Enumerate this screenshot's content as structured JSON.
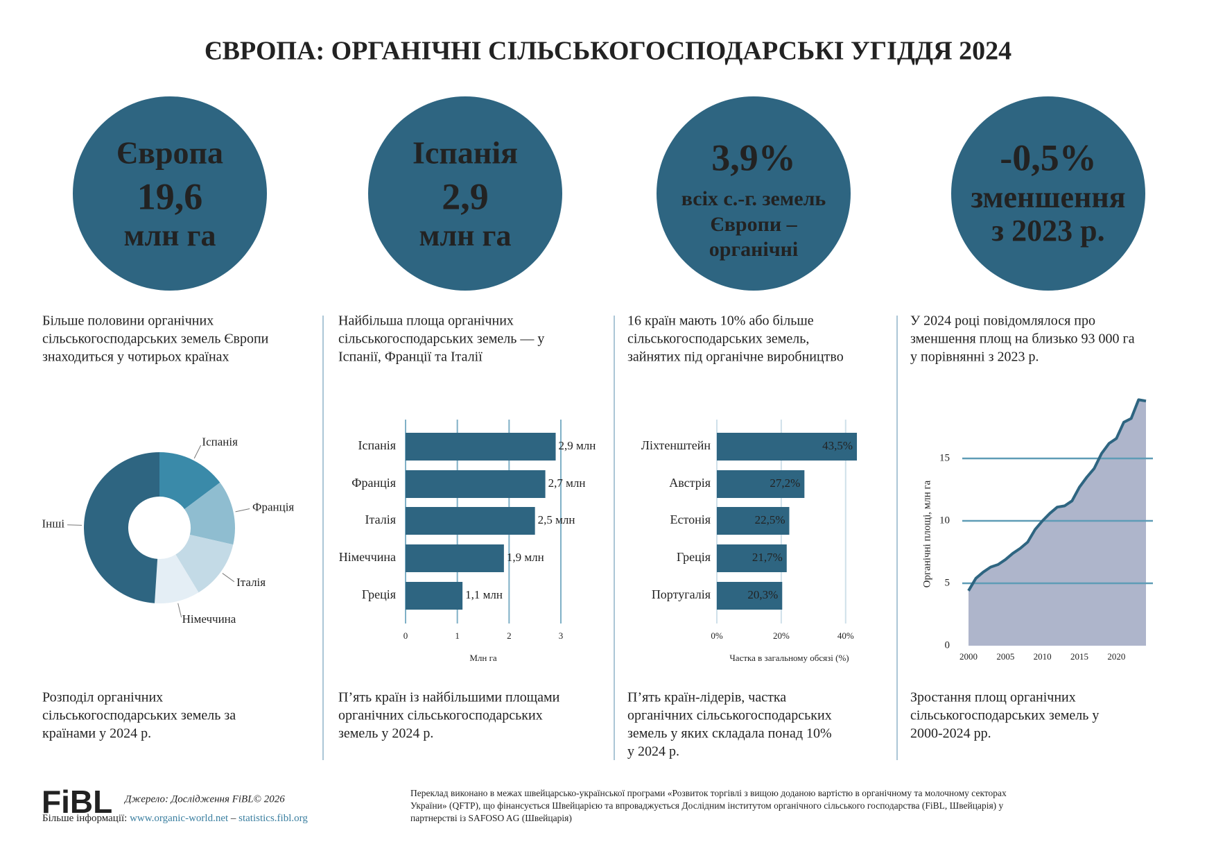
{
  "title": "ЄВРОПА: ОРГАНІЧНІ СІЛЬСЬКОГОСПОДАРСЬКІ УГІДДЯ 2024",
  "circles": [
    [
      "Європа",
      "19,6",
      "млн га"
    ],
    [
      "Іспанія",
      "2,9",
      "млн га"
    ],
    [
      "3,9%",
      "всіх с.-г. земель",
      "Європи –",
      "органічні"
    ],
    [
      "-0,5%",
      "зменшення",
      "з 2023 р."
    ]
  ],
  "intros": [
    [
      "Більше половини органічних",
      "сільськогосподарських земель Європи",
      "знаходиться у чотирьох країнах"
    ],
    [
      "Найбільша площа органічних",
      "сільськогосподарських земель — у",
      "Іспанії, Франції та Італії"
    ],
    [
      "16 країн мають 10% або більше",
      "сільськогосподарських земель,",
      "зайнятих під органічне виробництво"
    ],
    [
      "У 2024 році повідомлялося про",
      "зменшення площ на близько 93 000 га",
      "у порівнянні з 2023 р."
    ]
  ],
  "captions": [
    [
      "Розподіл органічних",
      "сільськогосподарських земель за",
      "країнами у 2024 р."
    ],
    [
      "П’ять країн із найбільшими площами",
      "органічних сільськогосподарських",
      "земель у 2024 р."
    ],
    [
      "П’ять країн-лідерів, частка",
      "органічних сільськогосподарських",
      "земель у яких складала понад 10%",
      "у 2024 р."
    ],
    [
      "Зростання площ органічних",
      "сільськогосподарських земель у",
      "2000-2024 рр."
    ]
  ],
  "chart_data": [
    {
      "type": "donut",
      "categories": [
        "Іспанія",
        "Франція",
        "Італія",
        "Німеччина",
        "Інші"
      ],
      "values": [
        2.9,
        2.7,
        2.5,
        1.9,
        9.6
      ],
      "colors": [
        "#3a8aa9",
        "#8fbdd0",
        "#c3dae6",
        "#e4eef5",
        "#2e6581"
      ]
    },
    {
      "type": "hbar",
      "categories": [
        "Іспанія",
        "Франція",
        "Італія",
        "Німеччина",
        "Греція"
      ],
      "values": [
        2.9,
        2.7,
        2.5,
        1.9,
        1.1
      ],
      "value_labels": [
        "2,9 млн",
        "2,7 млн",
        "2,5 млн",
        "1,9 млн",
        "1,1 млн"
      ],
      "color": "#2e6581",
      "xlim": [
        0,
        3
      ],
      "xticks": [
        0,
        1,
        2,
        3
      ],
      "xlabel": "Млн га",
      "grid": true
    },
    {
      "type": "hbar",
      "categories": [
        "Ліхтенштейн",
        "Австрія",
        "Естонія",
        "Греція",
        "Португалія"
      ],
      "values": [
        43.5,
        27.2,
        22.5,
        21.7,
        20.3
      ],
      "value_labels": [
        "43,5%",
        "27,2%",
        "22,5%",
        "21,7%",
        "20,3%"
      ],
      "color": "#2e6581",
      "xlim": [
        0,
        45
      ],
      "xticks": [
        {
          "value": 0,
          "label": "0%"
        },
        {
          "value": 20,
          "label": "20%"
        },
        {
          "value": 40,
          "label": "40%"
        }
      ],
      "xlabel": "Частка в загальному обсязі (%)",
      "grid": true
    },
    {
      "type": "area",
      "x": [
        2000,
        2001,
        2002,
        2003,
        2004,
        2005,
        2006,
        2007,
        2008,
        2009,
        2010,
        2011,
        2012,
        2013,
        2014,
        2015,
        2016,
        2017,
        2018,
        2019,
        2020,
        2021,
        2022,
        2023,
        2024
      ],
      "values": [
        4.4,
        5.4,
        5.9,
        6.3,
        6.5,
        6.9,
        7.4,
        7.8,
        8.3,
        9.3,
        10.0,
        10.6,
        11.1,
        11.2,
        11.6,
        12.7,
        13.5,
        14.2,
        15.4,
        16.2,
        16.6,
        17.9,
        18.2,
        19.7,
        19.6
      ],
      "color": "#2e6581",
      "fill": "#aeb5cb",
      "xlim": [
        2000,
        2024
      ],
      "ylim": [
        0,
        20
      ],
      "xticks": [
        2000,
        2005,
        2010,
        2015,
        2020
      ],
      "yticks": [
        0,
        5,
        10,
        15
      ],
      "ylabel": "Органічні площі, млн га",
      "grid": true,
      "grid_color": "#5e9cb6"
    }
  ],
  "footer": {
    "logo": "FiBL",
    "source": "Джерело: Дослідження FiBL© 2026",
    "more_label": "Більше інформації:",
    "links": [
      "www.organic-world.net",
      "statistics.fibl.org"
    ],
    "separator": "–",
    "note": [
      "Переклад виконано в межах швейцарсько-української програми «Розвиток торгівлі з вищою доданою вартістю в органічному та молочному секторах",
      "України» (QFTP), що фінансується Швейцарією та впроваджується Дослідним інститутом органічного сільського господарства (FiBL, Швейцарія) у",
      "партнерстві із SAFOSO AG (Швейцарія)"
    ]
  }
}
